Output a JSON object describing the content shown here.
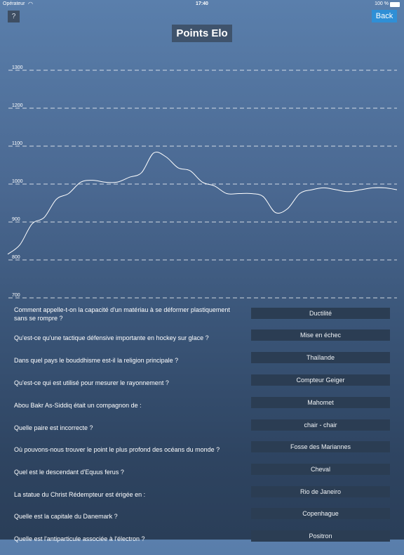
{
  "status_bar": {
    "carrier": "Opérateur",
    "time": "17:40",
    "battery": "100 %"
  },
  "toolbar": {
    "help_label": "?",
    "back_label": "Back"
  },
  "page_title": "Points Elo",
  "chart_data": {
    "type": "line",
    "title": "",
    "xlabel": "",
    "ylabel": "",
    "ylim": [
      700,
      1300
    ],
    "y_ticks": [
      1300,
      1200,
      1100,
      1000,
      900,
      800,
      700
    ],
    "grid": true,
    "series": [
      {
        "values": [
          815,
          840,
          895,
          912,
          960,
          975,
          1005,
          1010,
          1005,
          1005,
          1018,
          1030,
          1082,
          1072,
          1043,
          1035,
          1005,
          995,
          975,
          975,
          975,
          967,
          925,
          935,
          975,
          985,
          990,
          985,
          980,
          985,
          990,
          990,
          985
        ]
      }
    ]
  },
  "questions": [
    {
      "q": "Comment appelle-t-on la capacité d'un matériau à se déformer plastiquement sans se rompre ?",
      "a": "Ductilité"
    },
    {
      "q": "Qu'est-ce qu'une tactique défensive importante en hockey sur glace ?",
      "a": "Mise en échec"
    },
    {
      "q": "Dans quel pays le bouddhisme est-il la religion principale ?",
      "a": "Thaïlande"
    },
    {
      "q": "Qu'est-ce qui est utilisé pour mesurer le rayonnement ?",
      "a": "Compteur Geiger"
    },
    {
      "q": "Abou Bakr As-Siddiq était un compagnon de :",
      "a": "Mahomet"
    },
    {
      "q": "Quelle paire est incorrecte ?",
      "a": "chair - chair"
    },
    {
      "q": "Où pouvons-nous trouver le point le plus profond des océans du monde ?",
      "a": "Fosse des Mariannes"
    },
    {
      "q": "Quel est le descendant d'Equus ferus ?",
      "a": "Cheval"
    },
    {
      "q": "La statue du Christ Rédempteur est érigée en :",
      "a": "Rio de Janeiro"
    },
    {
      "q": "Quelle est la capitale du Danemark ?",
      "a": "Copenhague"
    },
    {
      "q": "Quelle est l'antiparticule associée à l'électron ?",
      "a": "Positron"
    }
  ]
}
